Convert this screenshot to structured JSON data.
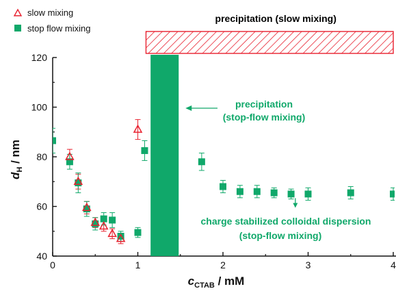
{
  "chart_data": {
    "type": "scatter",
    "xlabel_main": "c",
    "xlabel_sub": "CTAB",
    "xlabel_unit": " / mM",
    "ylabel_main": "d",
    "ylabel_sub": "H",
    "ylabel_unit": " / nm",
    "xlim": [
      0,
      4
    ],
    "ylim": [
      40,
      120
    ],
    "x_ticks": [
      "0",
      "1",
      "2",
      "3",
      "4"
    ],
    "x_tick_values": [
      0,
      1,
      2,
      3,
      4
    ],
    "y_ticks": [
      "40",
      "60",
      "80",
      "100",
      "120"
    ],
    "y_tick_values": [
      40,
      60,
      80,
      100,
      120
    ],
    "grid": false,
    "legend_position": "top-left",
    "colors": {
      "slow": "#e8202e",
      "stop": "#10a86a",
      "text_green": "#10a86a",
      "text_red": "#e8202e"
    },
    "series": [
      {
        "name": "slow mixing",
        "marker": "open-triangle",
        "points": [
          {
            "x": 0.2,
            "y": 80,
            "err": 3
          },
          {
            "x": 0.3,
            "y": 70,
            "err": 3
          },
          {
            "x": 0.4,
            "y": 59.5,
            "err": 2.5
          },
          {
            "x": 0.5,
            "y": 53.5,
            "err": 2
          },
          {
            "x": 0.6,
            "y": 52,
            "err": 2
          },
          {
            "x": 0.7,
            "y": 49,
            "err": 2
          },
          {
            "x": 0.8,
            "y": 47,
            "err": 2
          },
          {
            "x": 1.0,
            "y": 91,
            "err": 4
          }
        ]
      },
      {
        "name": "stop flow mixing",
        "marker": "filled-square",
        "points": [
          {
            "x": 0.0,
            "y": 86.5,
            "err": 5
          },
          {
            "x": 0.2,
            "y": 78,
            "err": 3
          },
          {
            "x": 0.3,
            "y": 69.5,
            "err": 4
          },
          {
            "x": 0.4,
            "y": 59,
            "err": 3
          },
          {
            "x": 0.5,
            "y": 53,
            "err": 2.5
          },
          {
            "x": 0.6,
            "y": 55,
            "err": 2.5
          },
          {
            "x": 0.7,
            "y": 54.5,
            "err": 3
          },
          {
            "x": 0.8,
            "y": 48,
            "err": 2
          },
          {
            "x": 1.0,
            "y": 49.5,
            "err": 2
          },
          {
            "x": 1.08,
            "y": 82.5,
            "err": 4
          },
          {
            "x": 1.75,
            "y": 78,
            "err": 3.5
          },
          {
            "x": 2.0,
            "y": 68,
            "err": 2.5
          },
          {
            "x": 2.2,
            "y": 66,
            "err": 2.5
          },
          {
            "x": 2.4,
            "y": 66,
            "err": 2.5
          },
          {
            "x": 2.6,
            "y": 65.5,
            "err": 2
          },
          {
            "x": 2.8,
            "y": 65,
            "err": 2
          },
          {
            "x": 3.0,
            "y": 65,
            "err": 2.5
          },
          {
            "x": 3.5,
            "y": 65.5,
            "err": 2.5
          },
          {
            "x": 4.0,
            "y": 65,
            "err": 2.5
          }
        ]
      }
    ],
    "regions": {
      "precipitation_stop_flow": {
        "x_from": 1.15,
        "x_to": 1.48
      },
      "precipitation_slow": {
        "x_from": 1.08,
        "x_to": 4.0
      }
    },
    "annotations": {
      "precip_slow": "precipitation (slow mixing)",
      "precip_stop_line1": "precipitation",
      "precip_stop_line2": "(stop-flow mixing)",
      "colloid_line1": "charge stabilized colloidal dispersion",
      "colloid_line2": "(stop-flow mixing)",
      "arrow_target_x": 2.85,
      "arrow_target_y": 60
    }
  }
}
